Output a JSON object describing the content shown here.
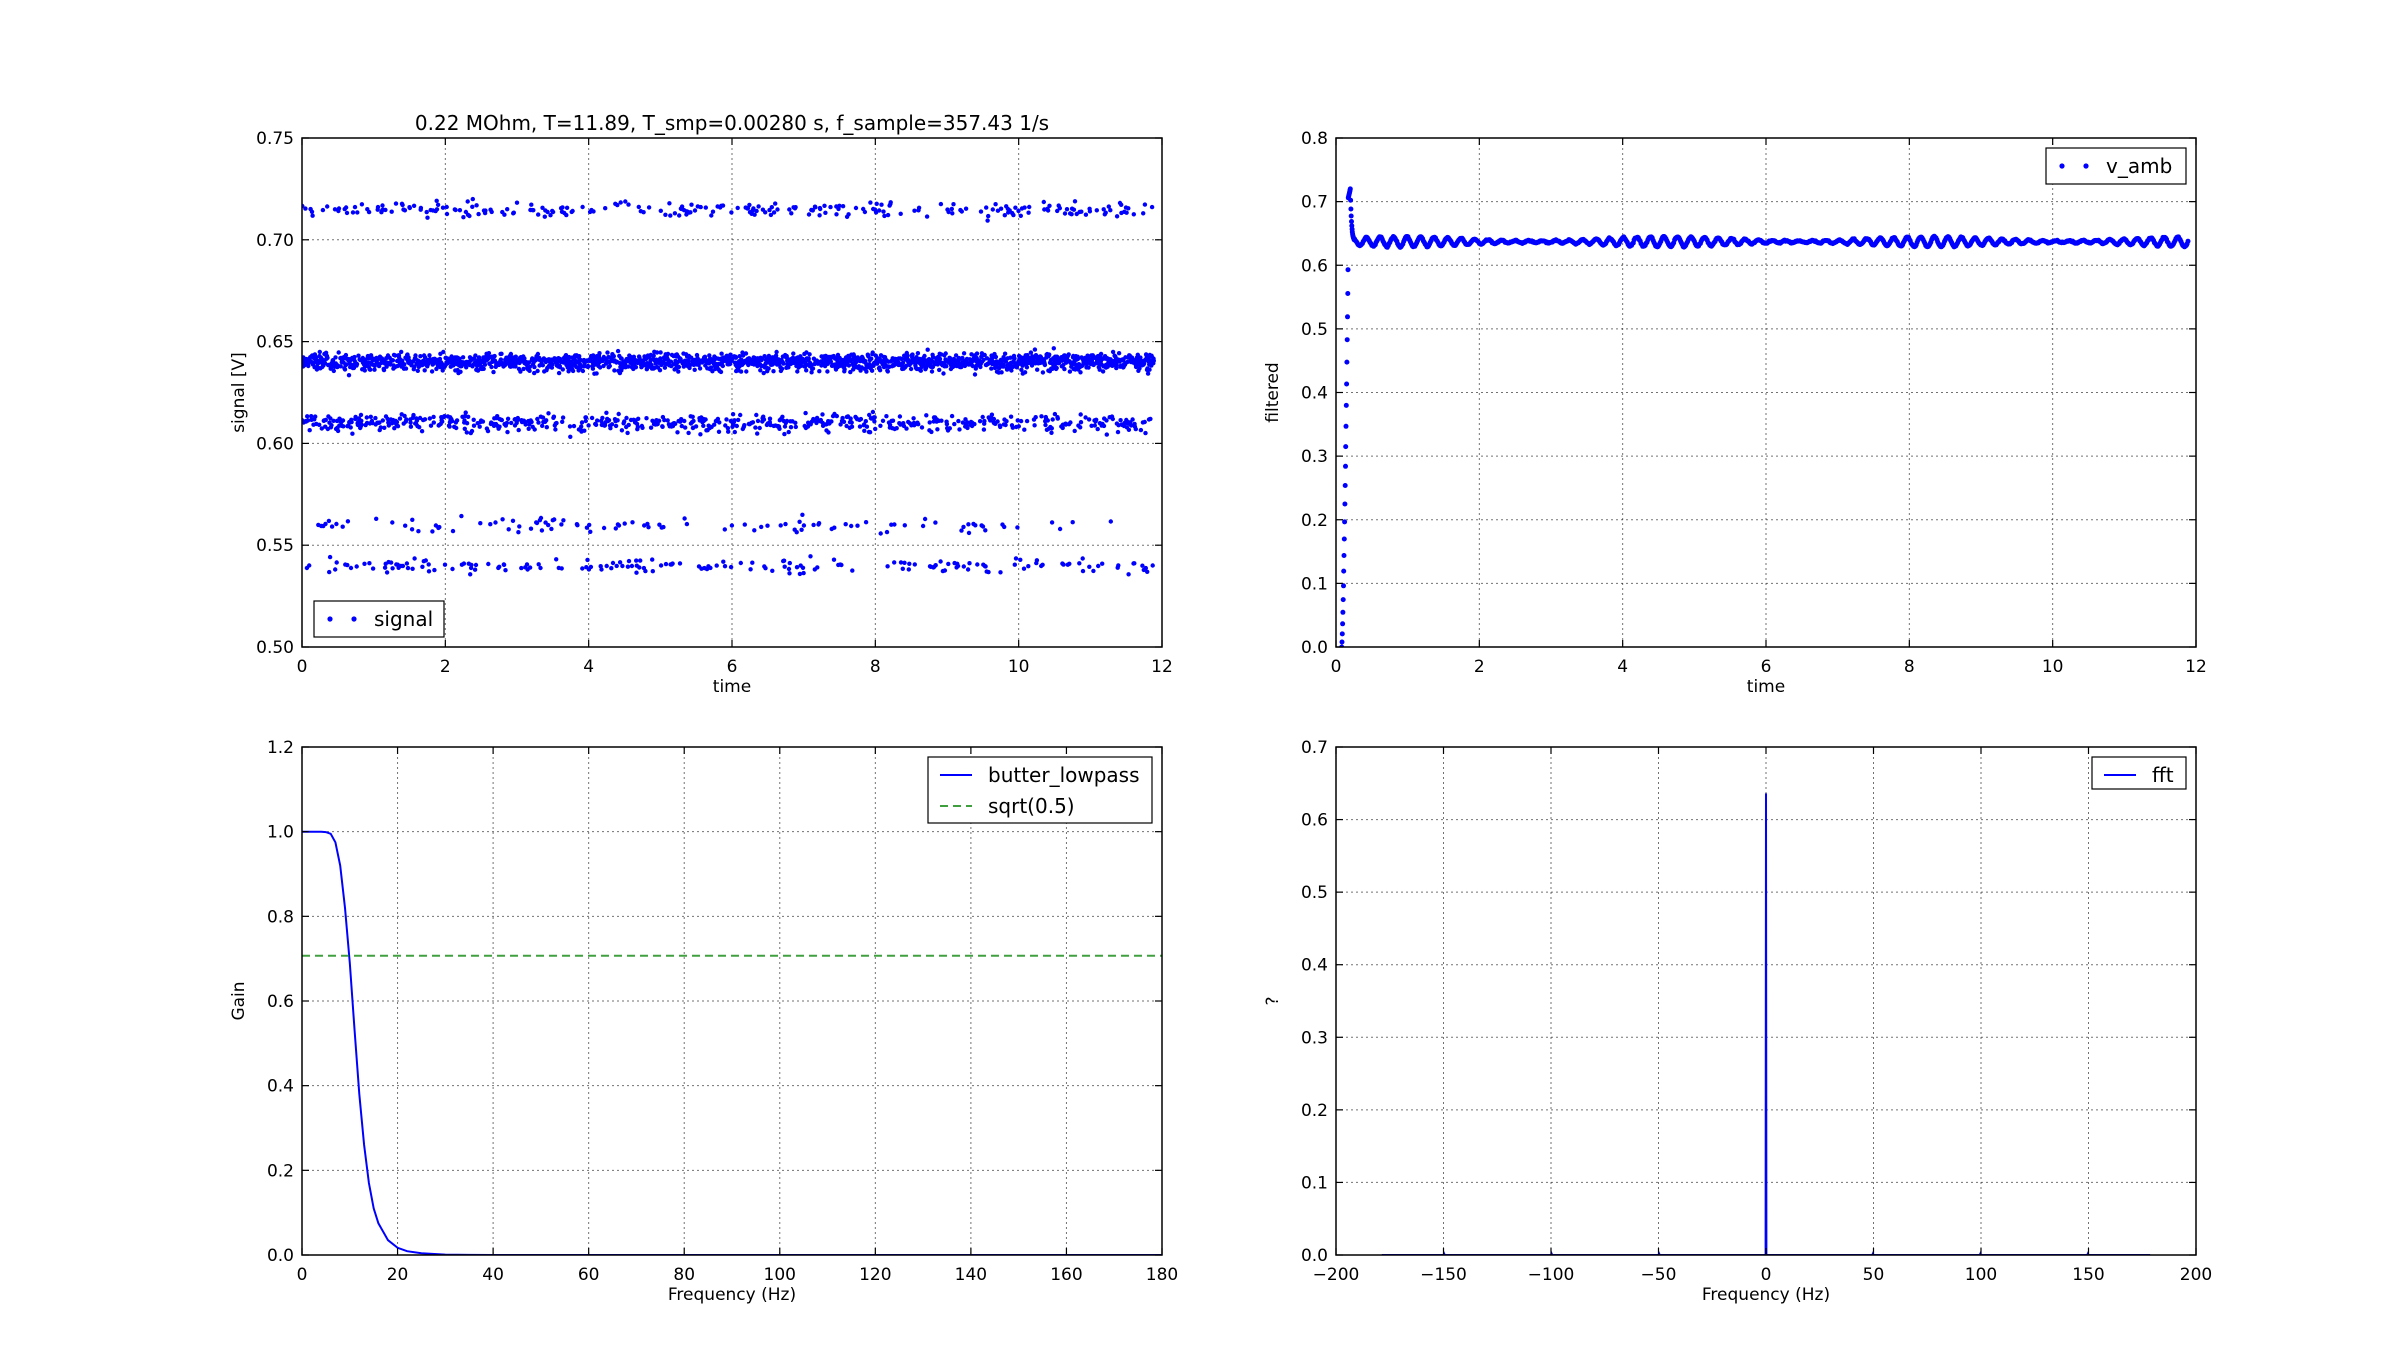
{
  "chart_data": [
    {
      "id": "signal",
      "type": "scatter",
      "title": "0.22 MOhm, T=11.89, T_smp=0.00280 s, f_sample=357.43 1/s",
      "xlabel": "time",
      "ylabel": "signal [V]",
      "xlim": [
        0,
        12
      ],
      "ylim": [
        0.5,
        0.75
      ],
      "xticks": [
        0,
        2,
        4,
        6,
        8,
        10,
        12
      ],
      "yticks": [
        0.5,
        0.55,
        0.6,
        0.65,
        0.7,
        0.75
      ],
      "ytick_labels": [
        "0.50",
        "0.55",
        "0.60",
        "0.65",
        "0.70",
        "0.75"
      ],
      "grid": true,
      "legend": "lower-left",
      "series": [
        {
          "name": "signal",
          "color": "#0000ff",
          "marker": "dot",
          "x_range": [
            0,
            11.89
          ],
          "sample_interval": 0.0028,
          "levels": [
            {
              "value": 0.64,
              "fraction": 0.6
            },
            {
              "value": 0.61,
              "fraction": 0.22
            },
            {
              "value": 0.715,
              "fraction": 0.09
            },
            {
              "value": 0.56,
              "fraction": 0.03
            },
            {
              "value": 0.54,
              "fraction": 0.06
            }
          ]
        }
      ]
    },
    {
      "id": "filtered",
      "type": "scatter",
      "title": "",
      "xlabel": "time",
      "ylabel": "filtered",
      "xlim": [
        0,
        12
      ],
      "ylim": [
        0,
        0.8
      ],
      "xticks": [
        0,
        2,
        4,
        6,
        8,
        10,
        12
      ],
      "yticks": [
        0,
        0.1,
        0.2,
        0.3,
        0.4,
        0.5,
        0.6,
        0.7,
        0.8
      ],
      "ytick_labels": [
        "0.0",
        "0.1",
        "0.2",
        "0.3",
        "0.4",
        "0.5",
        "0.6",
        "0.7",
        "0.8"
      ],
      "grid": true,
      "legend": "upper-right",
      "series": [
        {
          "name": "v_amb",
          "color": "#0000ff",
          "marker": "dot",
          "steady_value": 0.637,
          "ripple_amplitude": 0.008,
          "rise_start": 0.08,
          "rise_end": 0.17,
          "overshoot_peak": 0.72,
          "overshoot_time": 0.18,
          "settle_time": 0.26,
          "x_end": 11.89
        }
      ]
    },
    {
      "id": "filter-response",
      "type": "line",
      "title": "",
      "xlabel": "Frequency (Hz)",
      "ylabel": "Gain",
      "xlim": [
        0,
        180
      ],
      "ylim": [
        0,
        1.2
      ],
      "xticks": [
        0,
        20,
        40,
        60,
        80,
        100,
        120,
        140,
        160,
        180
      ],
      "yticks": [
        0,
        0.2,
        0.4,
        0.6,
        0.8,
        1.0,
        1.2
      ],
      "ytick_labels": [
        "0.0",
        "0.2",
        "0.4",
        "0.6",
        "0.8",
        "1.0",
        "1.2"
      ],
      "grid": true,
      "legend": "upper-right",
      "series": [
        {
          "name": "butter_lowpass",
          "color": "#0000ff",
          "style": "solid",
          "x": [
            0,
            2,
            4,
            5,
            6,
            7,
            8,
            9,
            10,
            11,
            12,
            13,
            14,
            15,
            16,
            18,
            20,
            22,
            25,
            30,
            35,
            40
          ],
          "y": [
            1.0,
            1.0,
            1.0,
            0.999,
            0.995,
            0.975,
            0.92,
            0.82,
            0.69,
            0.53,
            0.38,
            0.26,
            0.17,
            0.11,
            0.075,
            0.035,
            0.017,
            0.009,
            0.004,
            0.001,
            0.0003,
            0.0001
          ]
        },
        {
          "name": "sqrt(0.5)",
          "color": "#008000",
          "style": "dashed",
          "x": [
            0,
            180
          ],
          "y": [
            0.7071,
            0.7071
          ]
        }
      ]
    },
    {
      "id": "fft",
      "type": "line",
      "title": "",
      "xlabel": "Frequency (Hz)",
      "ylabel": "?",
      "xlim": [
        -200,
        200
      ],
      "ylim": [
        0,
        0.7
      ],
      "xticks": [
        -200,
        -150,
        -100,
        -50,
        0,
        50,
        100,
        150,
        200
      ],
      "xtick_labels": [
        "−200",
        "−150",
        "−100",
        "−50",
        "0",
        "50",
        "100",
        "150",
        "200"
      ],
      "yticks": [
        0,
        0.1,
        0.2,
        0.3,
        0.4,
        0.5,
        0.6,
        0.7
      ],
      "ytick_labels": [
        "0.0",
        "0.1",
        "0.2",
        "0.3",
        "0.4",
        "0.5",
        "0.6",
        "0.7"
      ],
      "grid": true,
      "legend": "upper-right",
      "series": [
        {
          "name": "fft",
          "color": "#0000ff",
          "style": "solid",
          "x": [
            -178.7,
            -150,
            -149.7,
            -149.4,
            -100,
            -99.7,
            -99.4,
            -50,
            -49.7,
            -49.4,
            -0.2,
            0,
            0.2,
            49.4,
            49.7,
            50,
            99.4,
            99.7,
            100,
            149.4,
            149.7,
            150,
            178.7
          ],
          "y": [
            0,
            0,
            0.002,
            0,
            0,
            0.002,
            0,
            0,
            0.002,
            0,
            0,
            0.636,
            0,
            0,
            0.002,
            0,
            0,
            0.002,
            0,
            0,
            0.002,
            0,
            0
          ]
        }
      ]
    }
  ]
}
